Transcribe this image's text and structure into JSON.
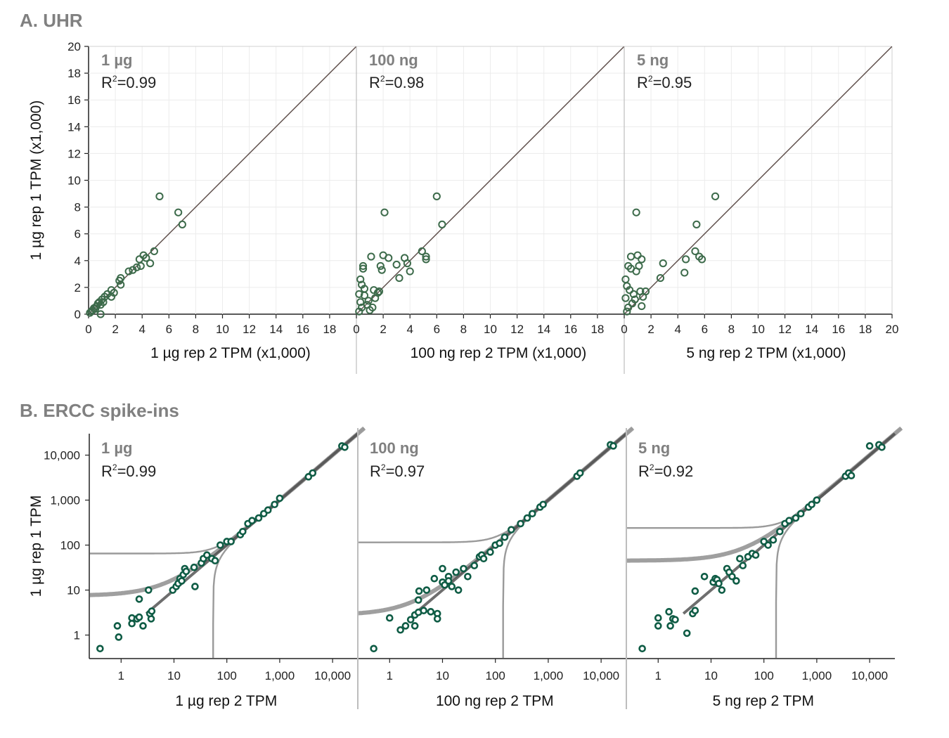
{
  "sectionA": {
    "title": "A. UHR"
  },
  "sectionB": {
    "title": "B. ERCC spike-ins"
  },
  "colors": {
    "point_uhr": "#3d6b4b",
    "point_ercc": "#0f5c45",
    "identity_line_uhr": "#5a4a46",
    "ercc_line": "#4a4a4a",
    "ercc_curve": "#9a9a9a",
    "grid": "#ececec",
    "divider": "#bdbdbd"
  },
  "chart_data": [
    {
      "type": "scatter",
      "id": "uhr",
      "ylabel": "1 µg rep 1 TPM (x1,000)",
      "xlim": [
        0,
        20
      ],
      "ylim": [
        0,
        20
      ],
      "ticks": [
        0,
        2,
        4,
        6,
        8,
        10,
        12,
        14,
        16,
        18,
        20
      ],
      "x_tick_labels": [
        "0",
        "2",
        "4",
        "6",
        "8",
        "10",
        "12",
        "14",
        "16",
        "18",
        "20"
      ],
      "y_tick_labels": [
        "0",
        "2",
        "4",
        "6",
        "8",
        "10",
        "12",
        "14",
        "16",
        "18",
        "20"
      ],
      "grid": true,
      "identity_line": true,
      "panels": [
        {
          "name": "1 µg",
          "r2_prefix": "R",
          "r2_sup": "2",
          "r2_value": "=0.99",
          "xlabel": "1 µg rep 2 TPM (x1,000)",
          "points": [
            [
              5.3,
              8.8
            ],
            [
              6.7,
              7.6
            ],
            [
              7.0,
              6.7
            ],
            [
              4.9,
              4.7
            ],
            [
              4.6,
              3.8
            ],
            [
              4.1,
              4.4
            ],
            [
              4.3,
              4.2
            ],
            [
              3.8,
              4.1
            ],
            [
              3.6,
              3.5
            ],
            [
              3.9,
              3.6
            ],
            [
              3.3,
              3.3
            ],
            [
              3.0,
              3.2
            ],
            [
              2.4,
              2.7
            ],
            [
              2.3,
              2.5
            ],
            [
              2.4,
              2.2
            ],
            [
              1.7,
              1.8
            ],
            [
              1.9,
              1.6
            ],
            [
              1.4,
              1.5
            ],
            [
              1.7,
              1.3
            ],
            [
              1.2,
              1.3
            ],
            [
              1.0,
              1.1
            ],
            [
              0.8,
              0.9
            ],
            [
              0.9,
              0.7
            ],
            [
              0.6,
              0.6
            ],
            [
              0.4,
              0.45
            ],
            [
              0.3,
              0.3
            ],
            [
              0.2,
              0.2
            ],
            [
              0.1,
              0.1
            ],
            [
              0.5,
              0.4
            ],
            [
              0.7,
              0.8
            ],
            [
              1.1,
              0.9
            ],
            [
              0.9,
              0.0
            ]
          ]
        },
        {
          "name": "100 ng",
          "r2_prefix": "R",
          "r2_sup": "2",
          "r2_value": "=0.98",
          "xlabel": "100 ng rep 2 TPM (x1,000)",
          "points": [
            [
              6.0,
              8.8
            ],
            [
              2.1,
              7.6
            ],
            [
              6.4,
              6.7
            ],
            [
              4.9,
              4.7
            ],
            [
              5.2,
              4.1
            ],
            [
              5.2,
              4.3
            ],
            [
              3.6,
              4.2
            ],
            [
              3.8,
              3.8
            ],
            [
              2.0,
              4.4
            ],
            [
              2.4,
              4.2
            ],
            [
              4.0,
              3.2
            ],
            [
              1.8,
              3.6
            ],
            [
              3.0,
              3.7
            ],
            [
              1.9,
              3.3
            ],
            [
              3.2,
              2.7
            ],
            [
              1.1,
              4.3
            ],
            [
              0.5,
              3.6
            ],
            [
              0.5,
              3.4
            ],
            [
              0.3,
              2.6
            ],
            [
              0.4,
              2.2
            ],
            [
              0.6,
              1.9
            ],
            [
              1.3,
              1.8
            ],
            [
              1.6,
              1.6
            ],
            [
              1.7,
              1.7
            ],
            [
              1.4,
              1.2
            ],
            [
              0.9,
              1.0
            ],
            [
              0.8,
              0.7
            ],
            [
              0.3,
              0.9
            ],
            [
              0.4,
              0.5
            ],
            [
              0.2,
              0.2
            ],
            [
              1.0,
              0.3
            ],
            [
              0.6,
              1.4
            ],
            [
              0.2,
              1.5
            ],
            [
              1.2,
              0.5
            ]
          ]
        },
        {
          "name": "5 ng",
          "r2_prefix": "R",
          "r2_sup": "2",
          "r2_value": "=0.95",
          "xlabel": "5 ng rep 2 TPM (x1,000)",
          "points": [
            [
              6.8,
              8.8
            ],
            [
              0.9,
              7.6
            ],
            [
              5.4,
              6.7
            ],
            [
              5.3,
              4.7
            ],
            [
              5.8,
              4.1
            ],
            [
              5.6,
              4.3
            ],
            [
              4.6,
              4.1
            ],
            [
              2.9,
              3.8
            ],
            [
              4.5,
              3.1
            ],
            [
              2.7,
              2.7
            ],
            [
              1.0,
              4.4
            ],
            [
              0.5,
              4.3
            ],
            [
              1.3,
              4.1
            ],
            [
              1.1,
              3.6
            ],
            [
              0.3,
              3.6
            ],
            [
              0.5,
              3.4
            ],
            [
              0.9,
              3.2
            ],
            [
              0.1,
              2.6
            ],
            [
              0.2,
              2.1
            ],
            [
              0.4,
              1.8
            ],
            [
              1.2,
              1.7
            ],
            [
              1.6,
              1.7
            ],
            [
              1.4,
              1.3
            ],
            [
              0.8,
              1.1
            ],
            [
              0.6,
              0.8
            ],
            [
              0.3,
              0.5
            ],
            [
              0.2,
              0.2
            ],
            [
              0.1,
              1.2
            ],
            [
              1.3,
              0.6
            ],
            [
              0.7,
              1.5
            ]
          ]
        }
      ]
    },
    {
      "type": "scatter",
      "id": "ercc",
      "scale": "log",
      "ylabel": "1 µg rep 1 TPM",
      "xlim": [
        0.25,
        30000
      ],
      "ylim": [
        0.3,
        30000
      ],
      "x_ticks": [
        1,
        10,
        100,
        1000,
        10000
      ],
      "x_tick_labels": [
        "1",
        "10",
        "100",
        "1,000",
        "10,000"
      ],
      "y_ticks": [
        1,
        10,
        100,
        1000,
        10000
      ],
      "y_tick_labels": [
        "1",
        "10",
        "100",
        "1,000",
        "10,000"
      ],
      "grid": false,
      "panels": [
        {
          "name": "1 µg",
          "r2_prefix": "R",
          "r2_sup": "2",
          "r2_value": "=0.99",
          "xlabel": "1 µg rep 2 TPM",
          "floor_upper": 65,
          "floor_lower": 7.5,
          "vert_x": 55,
          "points": [
            [
              0.4,
              0.5
            ],
            [
              0.9,
              0.9
            ],
            [
              0.85,
              1.6
            ],
            [
              1.6,
              1.8
            ],
            [
              1.6,
              2.4
            ],
            [
              2.0,
              2.3
            ],
            [
              2.2,
              2.5
            ],
            [
              2.6,
              1.6
            ],
            [
              3.7,
              2.3
            ],
            [
              3.5,
              3.0
            ],
            [
              3.8,
              3.4
            ],
            [
              2.2,
              6.3
            ],
            [
              3.3,
              10
            ],
            [
              9.5,
              10
            ],
            [
              11,
              12
            ],
            [
              12,
              14
            ],
            [
              13,
              18
            ],
            [
              14,
              16
            ],
            [
              15,
              22
            ],
            [
              16,
              30
            ],
            [
              17,
              26
            ],
            [
              24,
              32
            ],
            [
              25,
              12
            ],
            [
              33,
              40
            ],
            [
              36,
              50
            ],
            [
              42,
              60
            ],
            [
              52,
              50
            ],
            [
              60,
              45
            ],
            [
              75,
              100
            ],
            [
              100,
              120
            ],
            [
              120,
              120
            ],
            [
              180,
              170
            ],
            [
              200,
              200
            ],
            [
              250,
              300
            ],
            [
              300,
              350
            ],
            [
              400,
              400
            ],
            [
              500,
              500
            ],
            [
              600,
              600
            ],
            [
              800,
              800
            ],
            [
              1000,
              1100
            ],
            [
              3500,
              3300
            ],
            [
              4200,
              4000
            ],
            [
              15000,
              16000
            ],
            [
              17000,
              15000
            ]
          ]
        },
        {
          "name": "100 ng",
          "r2_prefix": "R",
          "r2_sup": "2",
          "r2_value": "=0.97",
          "xlabel": "100 ng rep 2 TPM",
          "floor_upper": 115,
          "floor_lower": 2.8,
          "vert_x": 140,
          "points": [
            [
              0.5,
              0.5
            ],
            [
              1.0,
              2.4
            ],
            [
              1.6,
              1.3
            ],
            [
              2.0,
              1.6
            ],
            [
              2.5,
              2.2
            ],
            [
              3.0,
              1.6
            ],
            [
              3.0,
              2.8
            ],
            [
              3.5,
              3.2
            ],
            [
              3.5,
              6.0
            ],
            [
              3.6,
              9.5
            ],
            [
              4.4,
              3.5
            ],
            [
              5,
              10
            ],
            [
              6,
              3.3
            ],
            [
              7,
              18
            ],
            [
              8,
              3
            ],
            [
              8,
              2.3
            ],
            [
              10,
              15
            ],
            [
              10,
              30
            ],
            [
              11,
              13
            ],
            [
              13,
              20
            ],
            [
              13,
              16
            ],
            [
              15,
              12
            ],
            [
              18,
              25
            ],
            [
              20,
              10
            ],
            [
              25,
              30
            ],
            [
              30,
              20
            ],
            [
              40,
              35
            ],
            [
              50,
              55
            ],
            [
              55,
              60
            ],
            [
              60,
              50
            ],
            [
              80,
              70
            ],
            [
              100,
              100
            ],
            [
              120,
              110
            ],
            [
              150,
              150
            ],
            [
              200,
              220
            ],
            [
              300,
              300
            ],
            [
              400,
              400
            ],
            [
              500,
              500
            ],
            [
              700,
              700
            ],
            [
              800,
              800
            ],
            [
              3500,
              3400
            ],
            [
              4000,
              4000
            ],
            [
              15000,
              17000
            ],
            [
              17000,
              16000
            ]
          ]
        },
        {
          "name": "5 ng",
          "r2_prefix": "R",
          "r2_sup": "2",
          "r2_value": "=0.92",
          "xlabel": "5 ng rep 2 TPM",
          "floor_upper": 240,
          "floor_lower": 45,
          "vert_x": 170,
          "points": [
            [
              0.5,
              0.5
            ],
            [
              1.0,
              1.6
            ],
            [
              1.0,
              2.4
            ],
            [
              1.6,
              3.3
            ],
            [
              1.7,
              1.6
            ],
            [
              1.9,
              2.3
            ],
            [
              2.1,
              2.2
            ],
            [
              3.5,
              1.1
            ],
            [
              4.5,
              3.0
            ],
            [
              5,
              3.5
            ],
            [
              5,
              9.5
            ],
            [
              7.5,
              20
            ],
            [
              11,
              15
            ],
            [
              12,
              18
            ],
            [
              13,
              17
            ],
            [
              14,
              14
            ],
            [
              16,
              10
            ],
            [
              20,
              30
            ],
            [
              22,
              25
            ],
            [
              25,
              20
            ],
            [
              30,
              16
            ],
            [
              35,
              50
            ],
            [
              40,
              35
            ],
            [
              50,
              55
            ],
            [
              60,
              65
            ],
            [
              70,
              60
            ],
            [
              100,
              120
            ],
            [
              120,
              100
            ],
            [
              150,
              130
            ],
            [
              200,
              200
            ],
            [
              250,
              300
            ],
            [
              300,
              350
            ],
            [
              400,
              400
            ],
            [
              500,
              500
            ],
            [
              700,
              700
            ],
            [
              800,
              800
            ],
            [
              1000,
              1000
            ],
            [
              3500,
              3400
            ],
            [
              4000,
              4000
            ],
            [
              4500,
              3500
            ],
            [
              15000,
              17000
            ],
            [
              10000,
              16000
            ],
            [
              17000,
              15000
            ]
          ]
        }
      ]
    }
  ]
}
